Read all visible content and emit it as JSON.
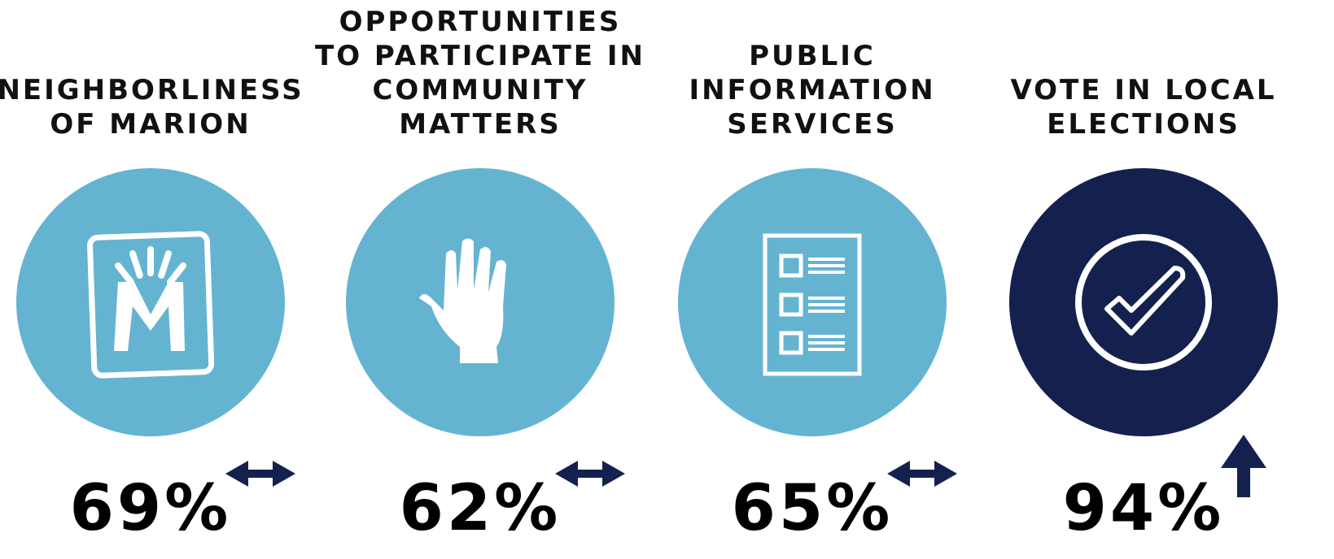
{
  "items": [
    {
      "title": [
        "NEIGHBORLINESS",
        "OF MARION"
      ],
      "value": "69%",
      "trend": "steady",
      "color": "#64b4d1"
    },
    {
      "title": [
        "OPPORTUNITIES",
        "TO PARTICIPATE IN",
        "COMMUNITY",
        "MATTERS"
      ],
      "value": "62%",
      "trend": "steady",
      "color": "#64b4d1"
    },
    {
      "title": [
        "PUBLIC",
        "INFORMATION",
        "SERVICES"
      ],
      "value": "65%",
      "trend": "steady",
      "color": "#64b4d1"
    },
    {
      "title": [
        "VOTE IN LOCAL",
        "ELECTIONS"
      ],
      "value": "94%",
      "trend": "up",
      "color": "#14214f"
    }
  ]
}
